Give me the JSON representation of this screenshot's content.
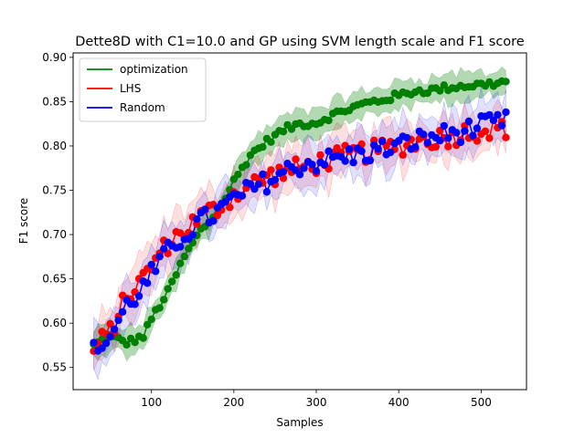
{
  "chart_data": {
    "type": "line",
    "title": "Dette8D with C1=10.0 and GP using SVM length scale and F1 score",
    "xlabel": "Samples",
    "ylabel": "F1 score",
    "xlim": [
      5,
      555
    ],
    "ylim": [
      0.525,
      0.905
    ],
    "xticks": [
      100,
      200,
      300,
      400,
      500
    ],
    "yticks": [
      0.55,
      0.6,
      0.65,
      0.7,
      0.75,
      0.8,
      0.85,
      0.9
    ],
    "grid": false,
    "legend_position": "top-left",
    "x_start": 30,
    "x_step": 5,
    "series": [
      {
        "name": "optimization",
        "color": "#008000",
        "anchors_x": [
          30,
          50,
          70,
          90,
          100,
          120,
          140,
          160,
          180,
          200,
          220,
          240,
          260,
          280,
          300,
          320,
          340,
          360,
          380,
          400,
          420,
          440,
          460,
          480,
          500,
          520,
          530
        ],
        "anchors_y": [
          0.575,
          0.585,
          0.578,
          0.585,
          0.605,
          0.635,
          0.675,
          0.705,
          0.725,
          0.76,
          0.79,
          0.805,
          0.818,
          0.825,
          0.826,
          0.835,
          0.842,
          0.848,
          0.852,
          0.857,
          0.862,
          0.863,
          0.866,
          0.868,
          0.869,
          0.871,
          0.872
        ],
        "band": 0.014
      },
      {
        "name": "LHS",
        "color": "#ff0000",
        "anchors_x": [
          30,
          50,
          70,
          90,
          100,
          120,
          140,
          160,
          180,
          200,
          220,
          240,
          260,
          280,
          300,
          320,
          340,
          360,
          380,
          400,
          420,
          440,
          460,
          480,
          500,
          520,
          530
        ],
        "anchors_y": [
          0.57,
          0.59,
          0.63,
          0.65,
          0.665,
          0.69,
          0.705,
          0.72,
          0.73,
          0.745,
          0.755,
          0.765,
          0.77,
          0.775,
          0.78,
          0.785,
          0.79,
          0.793,
          0.796,
          0.8,
          0.805,
          0.808,
          0.81,
          0.815,
          0.818,
          0.82,
          0.82
        ],
        "band": 0.022
      },
      {
        "name": "Random",
        "color": "#0000ff",
        "anchors_x": [
          30,
          50,
          70,
          90,
          100,
          120,
          140,
          160,
          180,
          200,
          220,
          240,
          260,
          280,
          300,
          320,
          340,
          360,
          380,
          400,
          420,
          440,
          460,
          480,
          500,
          520,
          530
        ],
        "anchors_y": [
          0.568,
          0.585,
          0.62,
          0.64,
          0.655,
          0.68,
          0.7,
          0.715,
          0.725,
          0.74,
          0.75,
          0.76,
          0.77,
          0.778,
          0.782,
          0.785,
          0.788,
          0.792,
          0.796,
          0.8,
          0.806,
          0.81,
          0.813,
          0.817,
          0.822,
          0.826,
          0.827
        ],
        "band": 0.022
      }
    ]
  }
}
